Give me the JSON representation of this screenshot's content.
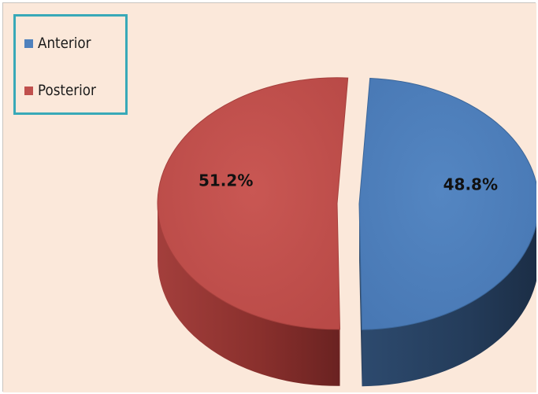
{
  "chart_data": {
    "type": "pie",
    "title": "",
    "categories": [
      "Anterior",
      "Posterior"
    ],
    "values": [
      48.8,
      51.2
    ],
    "labels": [
      "48.8%",
      "51.2%"
    ],
    "colors": [
      "#4f81bd",
      "#c0504d"
    ],
    "exploded": true,
    "three_d": true,
    "legend_position": "top-left",
    "legend": [
      {
        "label": "Anterior",
        "color": "#4f81bd"
      },
      {
        "label": "Posterior",
        "color": "#c0504d"
      }
    ]
  },
  "background_color": "#fbe8da",
  "legend_border_color": "#38a9b8"
}
